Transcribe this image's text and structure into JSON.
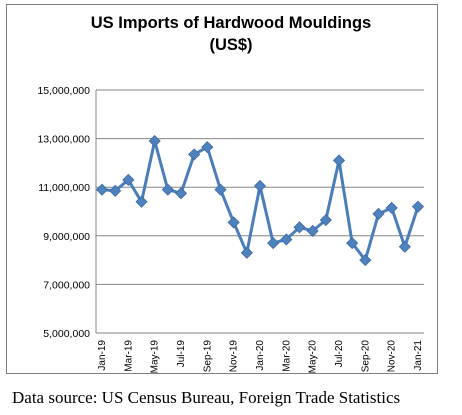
{
  "chart_data": {
    "type": "line",
    "title_line1": "US Imports of Hardwood Mouldings",
    "title_line2": "(US$)",
    "xlabel": "",
    "ylabel": "",
    "ylim": [
      5000000,
      15000000
    ],
    "yticks": [
      "5,000,000",
      "7,000,000",
      "9,000,000",
      "11,000,000",
      "13,000,000",
      "15,000,000"
    ],
    "ytick_values": [
      5000000,
      7000000,
      9000000,
      11000000,
      13000000,
      15000000
    ],
    "x": [
      "Jan-19",
      "Feb-19",
      "Mar-19",
      "Apr-19",
      "May-19",
      "Jun-19",
      "Jul-19",
      "Aug-19",
      "Sep-19",
      "Oct-19",
      "Nov-19",
      "Dec-19",
      "Jan-20",
      "Feb-20",
      "Mar-20",
      "Apr-20",
      "May-20",
      "Jun-20",
      "Jul-20",
      "Aug-20",
      "Sep-20",
      "Oct-20",
      "Nov-20",
      "Dec-20",
      "Jan-21"
    ],
    "xtick_labels": [
      "Jan-19",
      "Mar-19",
      "May-19",
      "Jul-19",
      "Sep-19",
      "Nov-19",
      "Jan-20",
      "Mar-20",
      "May-20",
      "Jul-20",
      "Sep-20",
      "Nov-20",
      "Jan-21"
    ],
    "series": [
      {
        "values": [
          10900000,
          10850000,
          11300000,
          10400000,
          12900000,
          10900000,
          10750000,
          12350000,
          12650000,
          10900000,
          9550000,
          8300000,
          11050000,
          8700000,
          8850000,
          9350000,
          9200000,
          9650000,
          12100000,
          8700000,
          8000000,
          9900000,
          10150000,
          8550000,
          10200000
        ]
      }
    ],
    "grid": true,
    "legend": "none",
    "line_color": "#4a7ebb",
    "marker_color": "#4f81bd",
    "grid_color": "#868686"
  },
  "source": "Data source: US Census Bureau, Foreign Trade Statistics"
}
